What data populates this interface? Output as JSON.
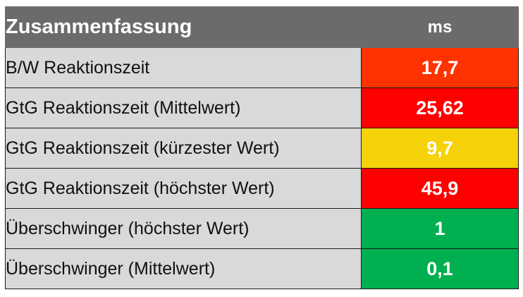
{
  "table": {
    "header": {
      "title": "Zusammenfassung",
      "unit": "ms"
    },
    "rows": [
      {
        "label": "B/W Reaktionszeit",
        "value": "17,7",
        "color": "#ff3300"
      },
      {
        "label": "GtG Reaktionszeit (Mittelwert)",
        "value": "25,62",
        "color": "#ff0000"
      },
      {
        "label": "GtG Reaktionszeit (kürzester Wert)",
        "value": "9,7",
        "color": "#f5d20a"
      },
      {
        "label": "GtG Reaktionszeit (höchster Wert)",
        "value": "45,9",
        "color": "#ff0000"
      },
      {
        "label": "Überschwinger (höchster Wert)",
        "value": "1",
        "color": "#00b050"
      },
      {
        "label": "Überschwinger (Mittelwert)",
        "value": "0,1",
        "color": "#00b050"
      }
    ]
  }
}
